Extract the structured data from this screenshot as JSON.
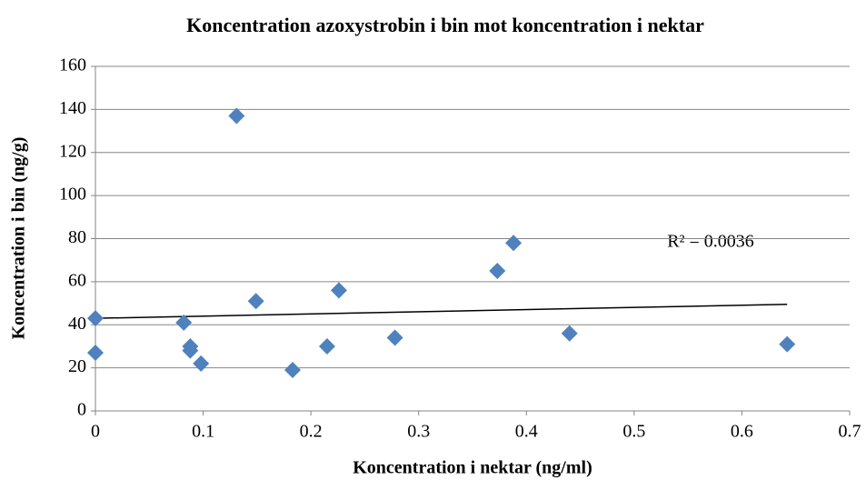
{
  "chart_data": {
    "type": "scatter",
    "title": "Koncentration azoxystrobin i bin mot koncentration i nektar",
    "x_label": "Koncentration i nektar (ng/ml)",
    "y_label": "Koncentration i bin (ng/g)",
    "annotation": "R² = 0.0036",
    "color": "#4f81bd",
    "x": [
      0,
      0,
      0.082,
      0.088,
      0.088,
      0.098,
      0.131,
      0.149,
      0.183,
      0.215,
      0.226,
      0.278,
      0.373,
      0.388,
      0.44,
      0.642
    ],
    "values": [
      43,
      27,
      41,
      30,
      28,
      22,
      137,
      51,
      19,
      30,
      56,
      34,
      65,
      78,
      36,
      31
    ],
    "trendline": {
      "x": [
        0,
        0.642
      ],
      "y": [
        43,
        49.5
      ],
      "color": "#000000"
    },
    "xlim": [
      0,
      0.7
    ],
    "xticks": [
      0,
      0.1,
      0.2,
      0.3,
      0.4,
      0.5,
      0.6,
      0.7
    ],
    "ylim": [
      0,
      160
    ],
    "yticks": [
      0,
      20,
      40,
      60,
      80,
      100,
      120,
      140,
      160
    ],
    "grid": true
  }
}
